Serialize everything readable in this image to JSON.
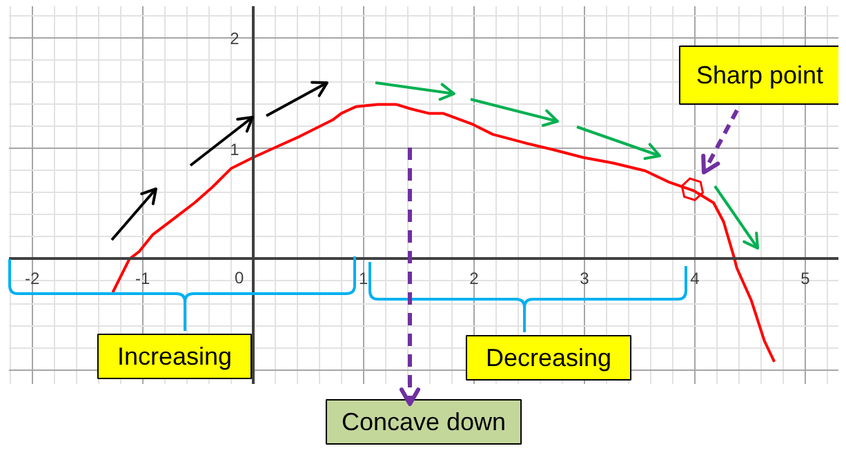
{
  "chart_data": {
    "type": "line",
    "series": [
      {
        "color": "#ff0000",
        "x": [
          -1.27,
          -1.12,
          -1.03,
          -0.91,
          -0.7,
          -0.53,
          -0.37,
          -0.2,
          0,
          0.22,
          0.42,
          0.72,
          0.8,
          0.93,
          1.13,
          1.3,
          1.43,
          1.59,
          1.72,
          1.99,
          2.17,
          2.47,
          2.72,
          2.99,
          3.26,
          3.55,
          3.76,
          3.99,
          4.17,
          4.26,
          4.36,
          4.38,
          4.51,
          4.63,
          4.72
        ],
        "values": [
          -0.3,
          0,
          0.07,
          0.22,
          0.38,
          0.51,
          0.65,
          0.82,
          0.92,
          1.02,
          1.11,
          1.26,
          1.32,
          1.38,
          1.4,
          1.4,
          1.36,
          1.32,
          1.32,
          1.22,
          1.13,
          1.05,
          0.99,
          0.92,
          0.87,
          0.8,
          0.7,
          0.62,
          0.51,
          0.34,
          0,
          -0.08,
          -0.37,
          -0.74,
          -0.93
        ]
      }
    ],
    "xlim": [
      -2.21,
      5.3
    ],
    "ylim": [
      -1.13,
      2.29
    ],
    "xticks": [
      -2,
      -1,
      0,
      1,
      2,
      3,
      4,
      5
    ],
    "yticks": [
      {
        "value": -1,
        "label": null
      },
      {
        "value": 0,
        "label": null
      },
      1,
      2
    ],
    "grid": true,
    "line_style": "solid",
    "annotations": [
      "Increasing",
      "Decreasing",
      "Sharp point",
      "Concave down"
    ]
  }
}
